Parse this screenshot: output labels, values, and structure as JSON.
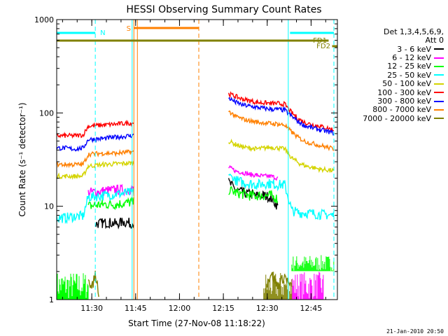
{
  "chart_data": {
    "type": "line",
    "title": "HESSI Observing Summary Count Rates",
    "xlabel": "Start Time (27-Nov-08 11:18:22)",
    "ylabel": "Count Rate (s⁻¹ detector⁻¹)",
    "yscale": "log",
    "ylim": [
      1,
      1000
    ],
    "xlim_minutes": [
      11.3,
      12.9
    ],
    "x_ticks": [
      "11:30",
      "11:45",
      "12:00",
      "12:15",
      "12:30",
      "12:45"
    ],
    "x_ticks_hours": [
      11.5,
      11.75,
      12.0,
      12.25,
      12.5,
      12.75
    ],
    "y_ticks": [
      "1",
      "10",
      "100",
      "1000"
    ],
    "y_ticks_values": [
      1,
      10,
      100,
      1000
    ],
    "grid": false,
    "legend_placement": "right",
    "legend_header": [
      "Det 1,3,4,5,6,9,",
      "Att 0"
    ],
    "series": [
      {
        "name": "3 - 6 keV",
        "color": "#000000",
        "segments": [
          {
            "x": [
              11.48,
              11.52,
              11.56,
              11.6,
              11.64,
              11.68,
              11.72,
              11.74
            ],
            "y": [
              null,
              6.5,
              6.6,
              6.7,
              6.5,
              6.8,
              6.6,
              6.7
            ]
          },
          {
            "x": [
              12.28,
              12.32,
              12.36,
              12.4,
              12.44,
              12.48,
              12.52,
              12.56
            ],
            "y": [
              18,
              15,
              14,
              13.5,
              13,
              13,
              12.5,
              10
            ]
          }
        ]
      },
      {
        "name": "6 - 12 keV",
        "color": "#ff00ff",
        "segments": [
          {
            "x": [
              11.3,
              11.45,
              11.48,
              11.56,
              11.64,
              11.72,
              11.74
            ],
            "y": [
              null,
              null,
              14,
              14.5,
              15,
              15,
              15.5
            ]
          },
          {
            "x": [
              12.28,
              12.32,
              12.36,
              12.4,
              12.44,
              12.48,
              12.52,
              12.56
            ],
            "y": [
              26,
              24,
              23,
              22,
              21.5,
              21,
              21,
              20
            ]
          }
        ]
      },
      {
        "name": "12 - 25 keV",
        "color": "#00ff00",
        "segments": [
          {
            "x": [
              11.48,
              11.56,
              11.64,
              11.72,
              11.74
            ],
            "y": [
              10,
              10.5,
              10.5,
              11,
              11
            ]
          },
          {
            "x": [
              12.28,
              12.32,
              12.36,
              12.4,
              12.44,
              12.48,
              12.52,
              12.56
            ],
            "y": [
              15,
              14,
              13.5,
              13,
              13,
              13,
              13,
              12
            ]
          }
        ]
      },
      {
        "name": "25 - 50 keV",
        "color": "#00ffff",
        "segments": [
          {
            "x": [
              11.3,
              11.35,
              11.4,
              11.45,
              11.48,
              11.56,
              11.64,
              11.72,
              11.74
            ],
            "y": [
              7.5,
              7.5,
              7.8,
              7.8,
              12.5,
              13,
              13.5,
              14,
              14
            ]
          },
          {
            "x": [
              12.28,
              12.32,
              12.36,
              12.4,
              12.44,
              12.48,
              12.52,
              12.56,
              12.6,
              12.64,
              12.68,
              12.72,
              12.8,
              12.88
            ],
            "y": [
              22,
              19,
              18,
              17.5,
              17,
              17.5,
              17.5,
              17,
              17,
              9,
              8.5,
              8.5,
              8.2,
              8
            ]
          }
        ]
      },
      {
        "name": "50 - 100 keV",
        "color": "#d4d400",
        "segments": [
          {
            "x": [
              11.3,
              11.35,
              11.4,
              11.45,
              11.48,
              11.56,
              11.64,
              11.72,
              11.74
            ],
            "y": [
              21,
              21,
              21,
              21,
              27,
              28,
              28.5,
              29,
              29
            ]
          },
          {
            "x": [
              12.28,
              12.32,
              12.36,
              12.4,
              12.44,
              12.48,
              12.52,
              12.56,
              12.6,
              12.64,
              12.68,
              12.72,
              12.8,
              12.88
            ],
            "y": [
              50,
              46,
              43,
              42,
              41,
              42,
              43,
              42,
              41,
              33,
              29,
              27,
              25,
              24
            ]
          }
        ]
      },
      {
        "name": "100 - 300 keV",
        "color": "#ff0000",
        "segments": [
          {
            "x": [
              11.3,
              11.35,
              11.4,
              11.45,
              11.48,
              11.56,
              11.64,
              11.72,
              11.74
            ],
            "y": [
              57,
              57,
              57,
              58,
              72,
              74,
              76,
              78,
              79
            ]
          },
          {
            "x": [
              12.28,
              12.32,
              12.36,
              12.4,
              12.44,
              12.48,
              12.52,
              12.56,
              12.6,
              12.64,
              12.68,
              12.72,
              12.8,
              12.88
            ],
            "y": [
              160,
              150,
              140,
              135,
              130,
              128,
              127,
              126,
              124,
              100,
              86,
              78,
              72,
              66
            ]
          }
        ]
      },
      {
        "name": "300 - 800 keV",
        "color": "#0000ff",
        "segments": [
          {
            "x": [
              11.3,
              11.35,
              11.4,
              11.45,
              11.48,
              11.56,
              11.64,
              11.72,
              11.74
            ],
            "y": [
              42,
              42,
              41,
              42,
              52,
              53,
              55,
              57,
              58
            ]
          },
          {
            "x": [
              12.28,
              12.32,
              12.36,
              12.4,
              12.44,
              12.48,
              12.52,
              12.56,
              12.6,
              12.64,
              12.68,
              12.72,
              12.8,
              12.88
            ],
            "y": [
              145,
              130,
              122,
              118,
              115,
              112,
              110,
              109,
              107,
              92,
              80,
              72,
              66,
              61
            ]
          }
        ]
      },
      {
        "name": "800 - 7000 keV",
        "color": "#ff8000",
        "segments": [
          {
            "x": [
              11.3,
              11.35,
              11.4,
              11.45,
              11.48,
              11.56,
              11.64,
              11.72,
              11.74
            ],
            "y": [
              28,
              28,
              28,
              28,
              36,
              37,
              37,
              38,
              38
            ]
          },
          {
            "x": [
              12.28,
              12.32,
              12.36,
              12.4,
              12.44,
              12.48,
              12.52,
              12.56,
              12.6,
              12.64,
              12.68,
              12.72,
              12.8,
              12.88
            ],
            "y": [
              105,
              92,
              86,
              82,
              80,
              78,
              77,
              76,
              74,
              62,
              54,
              49,
              45,
              41
            ]
          }
        ]
      },
      {
        "name": "7000 - 20000 keV",
        "color": "#808000",
        "segments": [
          {
            "x": [
              11.48,
              11.5,
              11.52,
              11.54
            ],
            "y": [
              1.8,
              1.3,
              1.9,
              1.2
            ]
          },
          {
            "x": [
              12.5,
              12.52,
              12.56,
              12.6,
              12.64
            ],
            "y": [
              1.5,
              1.9,
              1.4,
              1.8,
              1.3
            ]
          }
        ]
      }
    ],
    "noise_blocks": [
      {
        "series": "12 - 25 keV",
        "color": "#00ff00",
        "x": [
          11.3,
          11.48
        ],
        "y": [
          1,
          2.0
        ]
      },
      {
        "series": "12 - 25 keV",
        "color": "#00ff00",
        "x": [
          12.64,
          12.88
        ],
        "y": [
          2,
          3
        ]
      },
      {
        "series": "6 - 12 keV",
        "color": "#ff00ff",
        "x": [
          12.64,
          12.82
        ],
        "y": [
          1,
          2
        ]
      },
      {
        "series": "7000 - 20000 keV",
        "color": "#808000",
        "x": [
          12.48,
          12.64
        ],
        "y": [
          1,
          2
        ]
      }
    ],
    "annotations": {
      "night_marker": "N",
      "saa_marker": "S",
      "flare_markers": [
        "FD1",
        "FD2"
      ],
      "night_color": "#00ffff",
      "saa_color": "#ff8000",
      "fd1_color": "#ff8000",
      "fd2_color": "#808000"
    },
    "footer": "21-Jan-2010 20:50"
  }
}
